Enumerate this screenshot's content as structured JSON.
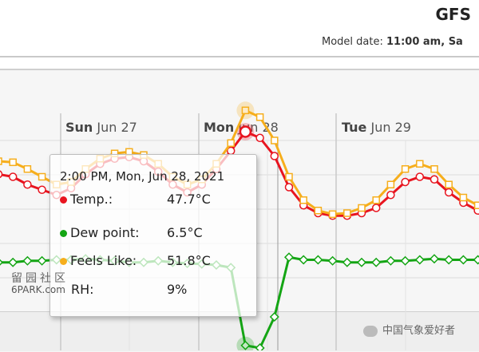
{
  "header": {
    "title": "GFS",
    "model_date_label": "Model date:",
    "model_date_value": "11:00 am, Sa"
  },
  "days": [
    {
      "dow": "Sun",
      "date": "Jun 27"
    },
    {
      "dow": "Mon",
      "date": "Jun 28"
    },
    {
      "dow": "Tue",
      "date": "Jun 29"
    }
  ],
  "tooltip": {
    "title": "2:00 PM, Mon, Jun 28, 2021",
    "rows": [
      {
        "label": "Temp.:",
        "value": "47.7°C",
        "color": "#e8141f"
      },
      {
        "label": "Dew point:",
        "value": "6.5°C",
        "color": "#14a514"
      },
      {
        "label": "Feels Like:",
        "value": "51.8°C",
        "color": "#f6ae1c"
      },
      {
        "label": "RH:",
        "value": "9%",
        "color": ""
      }
    ]
  },
  "watermarks": {
    "left_top": "留园社区",
    "left_bottom": "6PARK.com",
    "right": "中国气象爱好者"
  },
  "chart_data": {
    "type": "line",
    "x_unit": "hours",
    "ylabel": "",
    "series": [
      {
        "name": "Temp.",
        "color": "#e8141f",
        "values": [
          39.5,
          39.0,
          37.5,
          36.5,
          35.5,
          36.8,
          39.5,
          41.5,
          42.5,
          42.8,
          42.0,
          40.0,
          37.5,
          36.0,
          37.5,
          40.5,
          44.0,
          47.7,
          46.5,
          43.0,
          37.0,
          33.5,
          32.0,
          31.5,
          31.5,
          32.0,
          33.0,
          35.5,
          38.0,
          39.0,
          38.5,
          36.0,
          34.0,
          32.5
        ]
      },
      {
        "name": "Dew point",
        "color": "#14a514",
        "values": [
          22.5,
          22.5,
          22.8,
          22.8,
          23.0,
          23.0,
          23.2,
          23.0,
          22.8,
          22.5,
          22.5,
          22.8,
          22.5,
          22.3,
          22.2,
          22.0,
          21.5,
          6.5,
          6.0,
          12.0,
          23.5,
          23.0,
          23.0,
          22.8,
          22.5,
          22.5,
          22.5,
          22.8,
          22.8,
          23.0,
          23.2,
          23.0,
          23.0,
          23.0
        ]
      },
      {
        "name": "Feels Like",
        "color": "#f6ae1c",
        "values": [
          42.0,
          41.8,
          40.5,
          39.0,
          37.5,
          38.0,
          40.5,
          42.5,
          43.5,
          43.8,
          43.2,
          41.5,
          39.0,
          37.5,
          38.5,
          41.5,
          45.5,
          51.8,
          50.5,
          46.0,
          39.0,
          34.5,
          32.5,
          31.8,
          32.0,
          33.0,
          34.5,
          37.5,
          40.5,
          41.5,
          40.5,
          37.5,
          35.0,
          33.5
        ]
      }
    ]
  }
}
